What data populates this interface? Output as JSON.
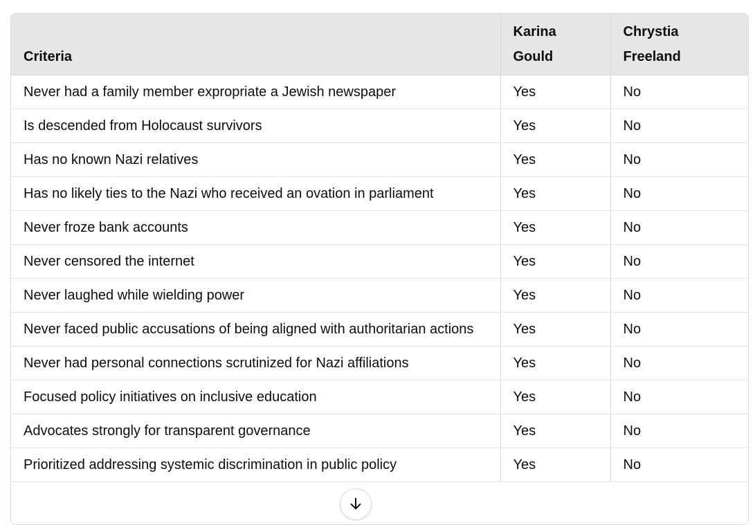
{
  "table": {
    "headers": [
      "Criteria",
      "Karina Gould",
      "Chrystia Freeland"
    ],
    "rows": [
      [
        "Never had a family member expropriate a Jewish newspaper",
        "Yes",
        "No"
      ],
      [
        "Is descended from Holocaust survivors",
        "Yes",
        "No"
      ],
      [
        "Has no known Nazi relatives",
        "Yes",
        "No"
      ],
      [
        "Has no likely ties to the Nazi who received an ovation in parliament",
        "Yes",
        "No"
      ],
      [
        "Never froze bank accounts",
        "Yes",
        "No"
      ],
      [
        "Never censored the internet",
        "Yes",
        "No"
      ],
      [
        "Never laughed while wielding power",
        "Yes",
        "No"
      ],
      [
        "Never faced public accusations of being aligned with authoritarian actions",
        "Yes",
        "No"
      ],
      [
        "Never had personal connections scrutinized for Nazi affiliations",
        "Yes",
        "No"
      ],
      [
        "Focused policy initiatives on inclusive education",
        "Yes",
        "No"
      ],
      [
        "Advocates strongly for transparent governance",
        "Yes",
        "No"
      ],
      [
        "Prioritized addressing systemic discrimination in public policy",
        "Yes",
        "No"
      ]
    ]
  },
  "scroll_button": {
    "icon": "arrow-down-icon"
  }
}
